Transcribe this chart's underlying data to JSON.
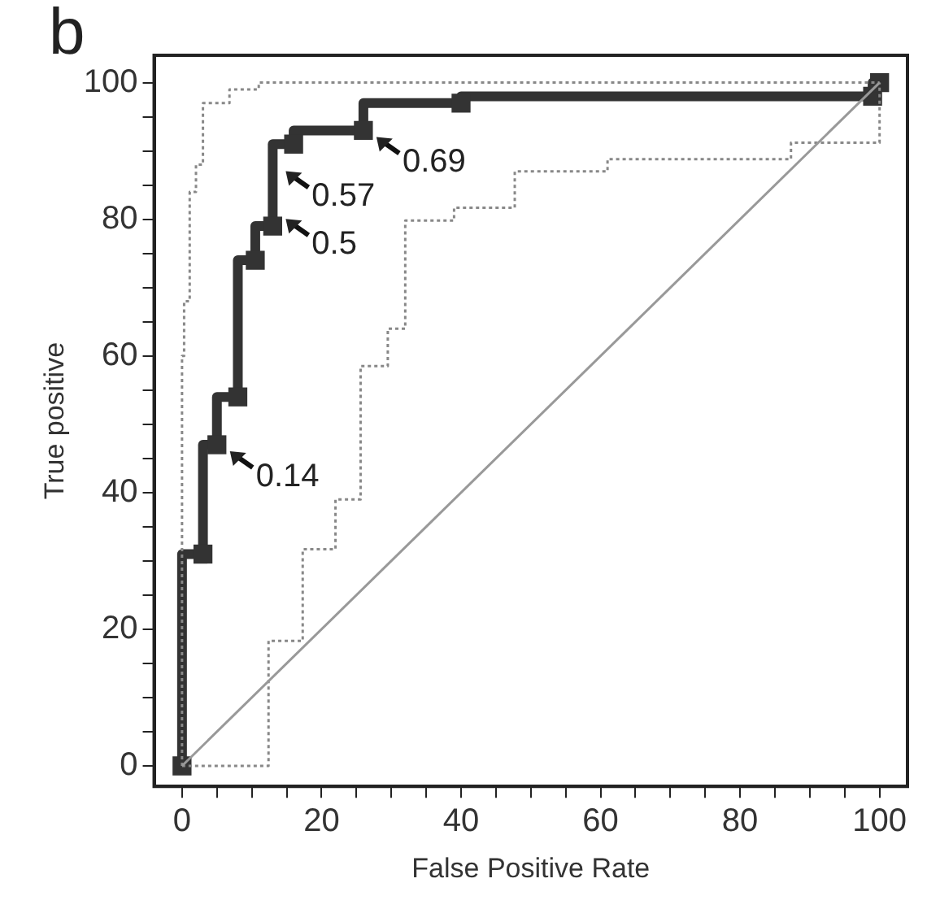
{
  "chart_data": {
    "type": "line",
    "xlabel": "False Positive Rate",
    "ylabel": "True positive",
    "annotations": [
      "b",
      {
        "text": "0.14",
        "x": 5,
        "y": 47
      },
      {
        "text": "0.5",
        "x": 13,
        "y": 81
      },
      {
        "text": "0.57",
        "x": 13,
        "y": 88
      },
      {
        "text": "0.69",
        "x": 26,
        "y": 93
      }
    ],
    "xlim": [
      -4,
      104
    ],
    "ylim": [
      -3,
      104
    ],
    "xticks": [
      0,
      {
        "value": 5,
        "label": null
      },
      {
        "value": 10,
        "label": null
      },
      {
        "value": 15,
        "label": null
      },
      20,
      {
        "value": 25,
        "label": null
      },
      {
        "value": 30,
        "label": null
      },
      {
        "value": 35,
        "label": null
      },
      40,
      {
        "value": 45,
        "label": null
      },
      {
        "value": 50,
        "label": null
      },
      {
        "value": 55,
        "label": null
      },
      60,
      {
        "value": 65,
        "label": null
      },
      {
        "value": 70,
        "label": null
      },
      {
        "value": 75,
        "label": null
      },
      80,
      {
        "value": 85,
        "label": null
      },
      {
        "value": 90,
        "label": null
      },
      {
        "value": 95,
        "label": null
      },
      100
    ],
    "yticks": [
      0,
      {
        "value": 5,
        "label": null
      },
      {
        "value": 10,
        "label": null
      },
      {
        "value": 15,
        "label": null
      },
      20,
      {
        "value": 25,
        "label": null
      },
      {
        "value": 30,
        "label": null
      },
      {
        "value": 35,
        "label": null
      },
      40,
      {
        "value": 45,
        "label": null
      },
      {
        "value": 50,
        "label": null
      },
      {
        "value": 55,
        "label": null
      },
      60,
      {
        "value": 65,
        "label": null
      },
      {
        "value": 70,
        "label": null
      },
      {
        "value": 75,
        "label": null
      },
      80,
      {
        "value": 85,
        "label": null
      },
      {
        "value": 90,
        "label": null
      },
      {
        "value": 95,
        "label": null
      },
      100
    ],
    "grid": false,
    "legend": false,
    "series": [
      {
        "color": "#999999",
        "line_style": "solid",
        "marker": "none",
        "x": [
          0,
          100
        ],
        "values": [
          0,
          100
        ]
      },
      {
        "type": "step",
        "color": "#888888",
        "line_style": "dotted",
        "marker": "none",
        "x": [
          0,
          12.4,
          17.3,
          22,
          25.6,
          29.5,
          32,
          39,
          47.7,
          61,
          87.3,
          100,
          100
        ],
        "values": [
          0,
          0,
          18.3,
          31.7,
          39,
          58.5,
          64,
          79.8,
          81.7,
          87,
          88.8,
          91.2,
          100
        ]
      },
      {
        "type": "step",
        "color": "#888888",
        "line_style": "dotted",
        "marker": "none",
        "x": [
          0,
          0.3,
          1.1,
          2,
          3,
          6.8,
          11,
          20.7,
          100
        ],
        "values": [
          0,
          60,
          68,
          84,
          88,
          97,
          99,
          100,
          100
        ]
      },
      {
        "type": "step",
        "color": "#333333",
        "line_style": "solid",
        "marker": "square",
        "x": [
          0,
          3,
          5,
          8,
          10.5,
          13,
          16,
          26,
          40,
          99,
          100
        ],
        "values": [
          0,
          31,
          47,
          54,
          74,
          79,
          91,
          93,
          97,
          98,
          100
        ]
      }
    ]
  }
}
